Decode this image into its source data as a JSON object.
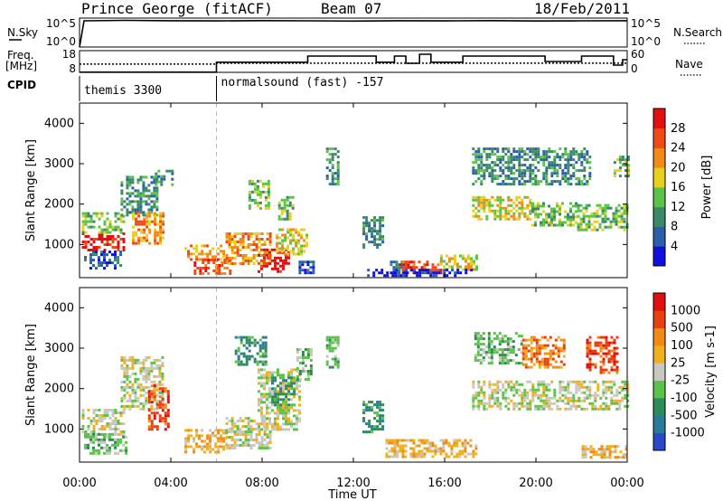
{
  "header": {
    "radar_title": "Prince George (fitACF)",
    "beam": "Beam 07",
    "date": "18/Feb/2011"
  },
  "strip_labels": {
    "nsky": "N.Sky",
    "nsky_max": "10^5",
    "nsky_min": "10^0",
    "nsearch": "N.Search",
    "nsearch_max": "10^5",
    "nsearch_min": "10^0",
    "freq": "Freq.",
    "freq_unit": "[MHz]",
    "freq_max": "18",
    "freq_min": "8",
    "nave": "Nave",
    "nave_max": "60",
    "nave_min": "0",
    "cpid": "CPID"
  },
  "cpid_segments": [
    {
      "start_hour": 0,
      "label": "themis 3300"
    },
    {
      "start_hour": 6,
      "label": "normalsound (fast) -157"
    }
  ],
  "x_axis": {
    "title": "Time UT",
    "ticks": [
      "00:00",
      "04:00",
      "08:00",
      "12:00",
      "16:00",
      "20:00",
      "00:00"
    ]
  },
  "panels": [
    {
      "id": "power",
      "y_axis_title": "Slant Range [km]",
      "y_ticks": [
        "1000",
        "2000",
        "3000",
        "4000"
      ],
      "colorbar_title": "Power [dB]",
      "colorbar_ticks": [
        "4",
        "8",
        "12",
        "16",
        "20",
        "24",
        "28"
      ],
      "colors": [
        "#1010dd",
        "#2c5fa8",
        "#3a8a6a",
        "#5cc24a",
        "#e6d020",
        "#f08a18",
        "#f04a14",
        "#e21010"
      ]
    },
    {
      "id": "velocity",
      "y_axis_title": "Slant Range [km]",
      "y_ticks": [
        "1000",
        "2000",
        "3000",
        "4000"
      ],
      "colorbar_title": "Velocity [m s-1]",
      "colorbar_ticks": [
        "1000",
        "500",
        "100",
        "25",
        "-25",
        "-100",
        "-500",
        "-1000"
      ],
      "colors": [
        "#2a48c8",
        "#2c7a9a",
        "#2f8a5a",
        "#5cc24a",
        "#c8c8c0",
        "#f0b020",
        "#f08a18",
        "#e84010",
        "#e01010"
      ]
    }
  ],
  "chart_data": [
    {
      "type": "line",
      "title": "N.Sky / N.Search",
      "x_unit": "hour UT",
      "x": [
        0,
        0.2,
        2,
        4,
        6,
        8,
        10,
        12,
        14,
        16,
        18,
        20,
        22,
        24
      ],
      "series": [
        {
          "name": "N.Sky",
          "values": [
            1,
            34000.0,
            40000.0,
            35000.0,
            33000.0,
            36000.0,
            34000.0,
            31000.0,
            35000.0,
            33000.0,
            36000.0,
            32000.0,
            34000.0,
            35000.0
          ]
        }
      ],
      "ylim": [
        1,
        100000
      ]
    },
    {
      "type": "line",
      "title": "Freq. / Nave",
      "x_unit": "hour UT",
      "series": [
        {
          "name": "Freq.",
          "steps": [
            [
              0,
              11.8
            ],
            [
              6,
              12.2
            ],
            [
              24,
              12.2
            ]
          ]
        },
        {
          "name": "Nave",
          "steps": [
            [
              0,
              0.5
            ],
            [
              6,
              28
            ],
            [
              10,
              45
            ],
            [
              13,
              28
            ],
            [
              13.8,
              45
            ],
            [
              14.3,
              25
            ],
            [
              14.9,
              50
            ],
            [
              15.4,
              28
            ],
            [
              16.8,
              45
            ],
            [
              20.4,
              30
            ],
            [
              22,
              45
            ],
            [
              23.4,
              20
            ],
            [
              23.8,
              35
            ],
            [
              24,
              35
            ]
          ]
        }
      ]
    },
    {
      "type": "heatmap",
      "title": "Power [dB]",
      "x_range": [
        0,
        24
      ],
      "ylim": [
        180,
        4500
      ],
      "blobs": [
        {
          "t0": 0.1,
          "t1": 1.9,
          "r0": 850,
          "r1": 1300,
          "level": 7
        },
        {
          "t0": 0.1,
          "t1": 2.0,
          "r0": 1300,
          "r1": 1800,
          "level": 3
        },
        {
          "t0": 0.2,
          "t1": 1.8,
          "r0": 400,
          "r1": 850,
          "level": 1
        },
        {
          "t0": 1.8,
          "t1": 3.4,
          "r0": 1700,
          "r1": 2700,
          "level": 2
        },
        {
          "t0": 2.3,
          "t1": 3.7,
          "r0": 1000,
          "r1": 1800,
          "level": 5
        },
        {
          "t0": 3.3,
          "t1": 4.1,
          "r0": 2500,
          "r1": 2850,
          "level": 2
        },
        {
          "t0": 4.6,
          "t1": 6.3,
          "r0": 600,
          "r1": 1000,
          "level": 5
        },
        {
          "t0": 5.0,
          "t1": 6.6,
          "r0": 300,
          "r1": 650,
          "level": 6
        },
        {
          "t0": 6.4,
          "t1": 8.4,
          "r0": 500,
          "r1": 1300,
          "level": 5
        },
        {
          "t0": 7.8,
          "t1": 9.2,
          "r0": 300,
          "r1": 900,
          "level": 7
        },
        {
          "t0": 8.6,
          "t1": 10.0,
          "r0": 750,
          "r1": 1400,
          "level": 4
        },
        {
          "t0": 9.6,
          "t1": 10.3,
          "r0": 300,
          "r1": 600,
          "level": 1
        },
        {
          "t0": 7.4,
          "t1": 8.3,
          "r0": 1900,
          "r1": 2600,
          "level": 3
        },
        {
          "t0": 8.7,
          "t1": 9.3,
          "r0": 1600,
          "r1": 2200,
          "level": 3
        },
        {
          "t0": 10.8,
          "t1": 11.3,
          "r0": 2500,
          "r1": 3400,
          "level": 2
        },
        {
          "t0": 12.4,
          "t1": 13.3,
          "r0": 950,
          "r1": 1700,
          "level": 2
        },
        {
          "t0": 13.6,
          "t1": 14.4,
          "r0": 300,
          "r1": 600,
          "level": 1
        },
        {
          "t0": 14.0,
          "t1": 15.8,
          "r0": 280,
          "r1": 600,
          "level": 6
        },
        {
          "t0": 15.8,
          "t1": 17.4,
          "r0": 400,
          "r1": 750,
          "level": 4
        },
        {
          "t0": 17.2,
          "t1": 19.8,
          "r0": 1600,
          "r1": 2200,
          "level": 4
        },
        {
          "t0": 19.8,
          "t1": 21.8,
          "r0": 1500,
          "r1": 2050,
          "level": 3
        },
        {
          "t0": 21.8,
          "t1": 24.0,
          "r0": 1350,
          "r1": 2000,
          "level": 3
        },
        {
          "t0": 17.2,
          "t1": 22.4,
          "r0": 2500,
          "r1": 3400,
          "level": 2
        },
        {
          "t0": 23.4,
          "t1": 24.0,
          "r0": 2700,
          "r1": 3200,
          "level": 3
        },
        {
          "t0": 12.6,
          "t1": 17.2,
          "r0": 200,
          "r1": 400,
          "level": 0
        }
      ]
    },
    {
      "type": "heatmap",
      "title": "Velocity [m s-1]",
      "x_range": [
        0,
        24
      ],
      "ylim": [
        180,
        4500
      ],
      "blobs": [
        {
          "t0": 0.1,
          "t1": 2.0,
          "r0": 850,
          "r1": 1500,
          "level": 4
        },
        {
          "t0": 0.2,
          "t1": 2.0,
          "r0": 400,
          "r1": 900,
          "level": 3
        },
        {
          "t0": 1.8,
          "t1": 3.6,
          "r0": 1500,
          "r1": 2800,
          "level": 4
        },
        {
          "t0": 3.0,
          "t1": 3.9,
          "r0": 1000,
          "r1": 2100,
          "level": 7
        },
        {
          "t0": 4.6,
          "t1": 6.4,
          "r0": 400,
          "r1": 1000,
          "level": 5
        },
        {
          "t0": 6.4,
          "t1": 8.4,
          "r0": 500,
          "r1": 1300,
          "level": 4
        },
        {
          "t0": 7.8,
          "t1": 9.6,
          "r0": 1000,
          "r1": 2500,
          "level": 4
        },
        {
          "t0": 8.4,
          "t1": 9.4,
          "r0": 1600,
          "r1": 2300,
          "level": 2
        },
        {
          "t0": 6.8,
          "t1": 8.2,
          "r0": 2600,
          "r1": 3300,
          "level": 2
        },
        {
          "t0": 9.5,
          "t1": 10.1,
          "r0": 2200,
          "r1": 3000,
          "level": 3
        },
        {
          "t0": 10.8,
          "t1": 11.3,
          "r0": 2500,
          "r1": 3300,
          "level": 3
        },
        {
          "t0": 12.4,
          "t1": 13.3,
          "r0": 950,
          "r1": 1700,
          "level": 2
        },
        {
          "t0": 13.4,
          "t1": 17.4,
          "r0": 300,
          "r1": 750,
          "level": 5
        },
        {
          "t0": 17.2,
          "t1": 24.0,
          "r0": 1500,
          "r1": 2200,
          "level": 4
        },
        {
          "t0": 17.3,
          "t1": 19.4,
          "r0": 2600,
          "r1": 3400,
          "level": 3
        },
        {
          "t0": 19.4,
          "t1": 21.2,
          "r0": 2500,
          "r1": 3300,
          "level": 6
        },
        {
          "t0": 22.2,
          "t1": 23.6,
          "r0": 2400,
          "r1": 3300,
          "level": 7
        },
        {
          "t0": 22.0,
          "t1": 24.0,
          "r0": 280,
          "r1": 600,
          "level": 5
        }
      ]
    }
  ]
}
